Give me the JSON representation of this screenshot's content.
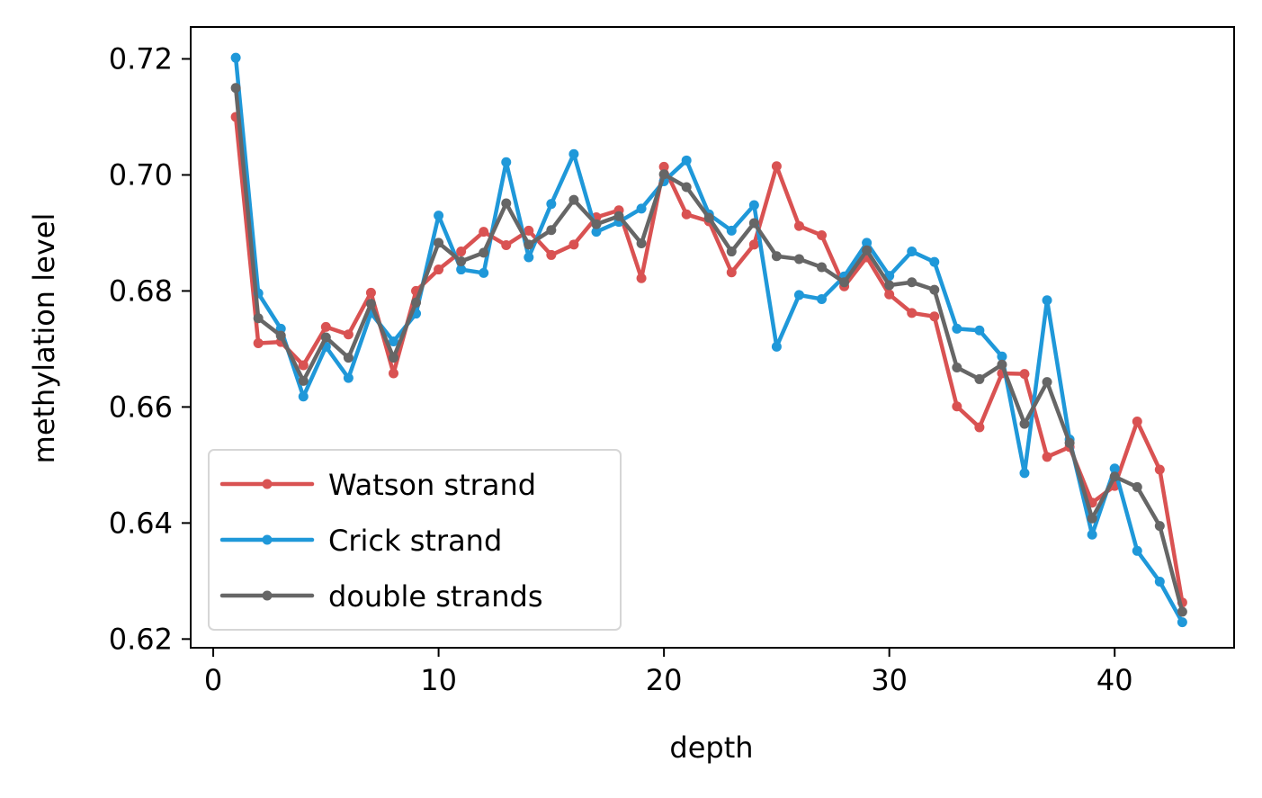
{
  "chart_data": {
    "type": "line",
    "title": "",
    "xlabel": "depth",
    "ylabel": "methylation level",
    "xlim": [
      -1,
      45.3
    ],
    "ylim": [
      0.6185,
      0.7255
    ],
    "xticks": [
      0,
      10,
      20,
      30,
      40
    ],
    "xtick_labels": [
      "0",
      "10",
      "20",
      "30",
      "40"
    ],
    "yticks": [
      0.62,
      0.64,
      0.66,
      0.68,
      0.7,
      0.72
    ],
    "ytick_labels": [
      "0.62",
      "0.64",
      "0.66",
      "0.68",
      "0.70",
      "0.72"
    ],
    "grid": false,
    "legend_position": "lower-left",
    "x": [
      1,
      2,
      3,
      4,
      5,
      6,
      7,
      8,
      9,
      10,
      11,
      12,
      13,
      14,
      15,
      16,
      17,
      18,
      19,
      20,
      21,
      22,
      23,
      24,
      25,
      26,
      27,
      28,
      29,
      30,
      31,
      32,
      33,
      34,
      35,
      36,
      37,
      38,
      39,
      40,
      41,
      42,
      43
    ],
    "series": [
      {
        "name": "Watson strand",
        "color": "#d95252",
        "values": [
          0.71,
          0.671,
          0.6712,
          0.6672,
          0.6738,
          0.6725,
          0.6797,
          0.6658,
          0.68,
          0.6837,
          0.6868,
          0.6902,
          0.6879,
          0.6904,
          0.6862,
          0.688,
          0.6927,
          0.6939,
          0.6822,
          0.7014,
          0.6932,
          0.692,
          0.6832,
          0.688,
          0.7015,
          0.6912,
          0.6896,
          0.6808,
          0.6858,
          0.6794,
          0.6762,
          0.6756,
          0.6601,
          0.6565,
          0.6658,
          0.6657,
          0.6514,
          0.6531,
          0.6435,
          0.6464,
          0.6575,
          0.6492,
          0.6263
        ]
      },
      {
        "name": "Crick strand",
        "color": "#1f98d9",
        "values": [
          0.7202,
          0.6796,
          0.6735,
          0.6618,
          0.6704,
          0.665,
          0.6762,
          0.6713,
          0.6761,
          0.693,
          0.6837,
          0.6831,
          0.7022,
          0.6858,
          0.695,
          0.7036,
          0.6902,
          0.6919,
          0.6942,
          0.6989,
          0.7025,
          0.6932,
          0.6904,
          0.6948,
          0.6704,
          0.6793,
          0.6786,
          0.6825,
          0.6883,
          0.6826,
          0.6868,
          0.685,
          0.6735,
          0.6732,
          0.6687,
          0.6486,
          0.6784,
          0.6544,
          0.638,
          0.6494,
          0.6352,
          0.6299,
          0.6229
        ]
      },
      {
        "name": "double strands",
        "color": "#666666",
        "values": [
          0.715,
          0.6753,
          0.6723,
          0.6645,
          0.672,
          0.6685,
          0.6778,
          0.6685,
          0.678,
          0.6883,
          0.6851,
          0.6866,
          0.6951,
          0.688,
          0.6905,
          0.6957,
          0.6915,
          0.6929,
          0.6882,
          0.7001,
          0.6979,
          0.6926,
          0.6868,
          0.6917,
          0.686,
          0.6855,
          0.6841,
          0.6815,
          0.687,
          0.681,
          0.6815,
          0.6802,
          0.6668,
          0.6648,
          0.6673,
          0.6571,
          0.6643,
          0.6538,
          0.6408,
          0.648,
          0.6462,
          0.6395,
          0.6247
        ]
      }
    ]
  }
}
